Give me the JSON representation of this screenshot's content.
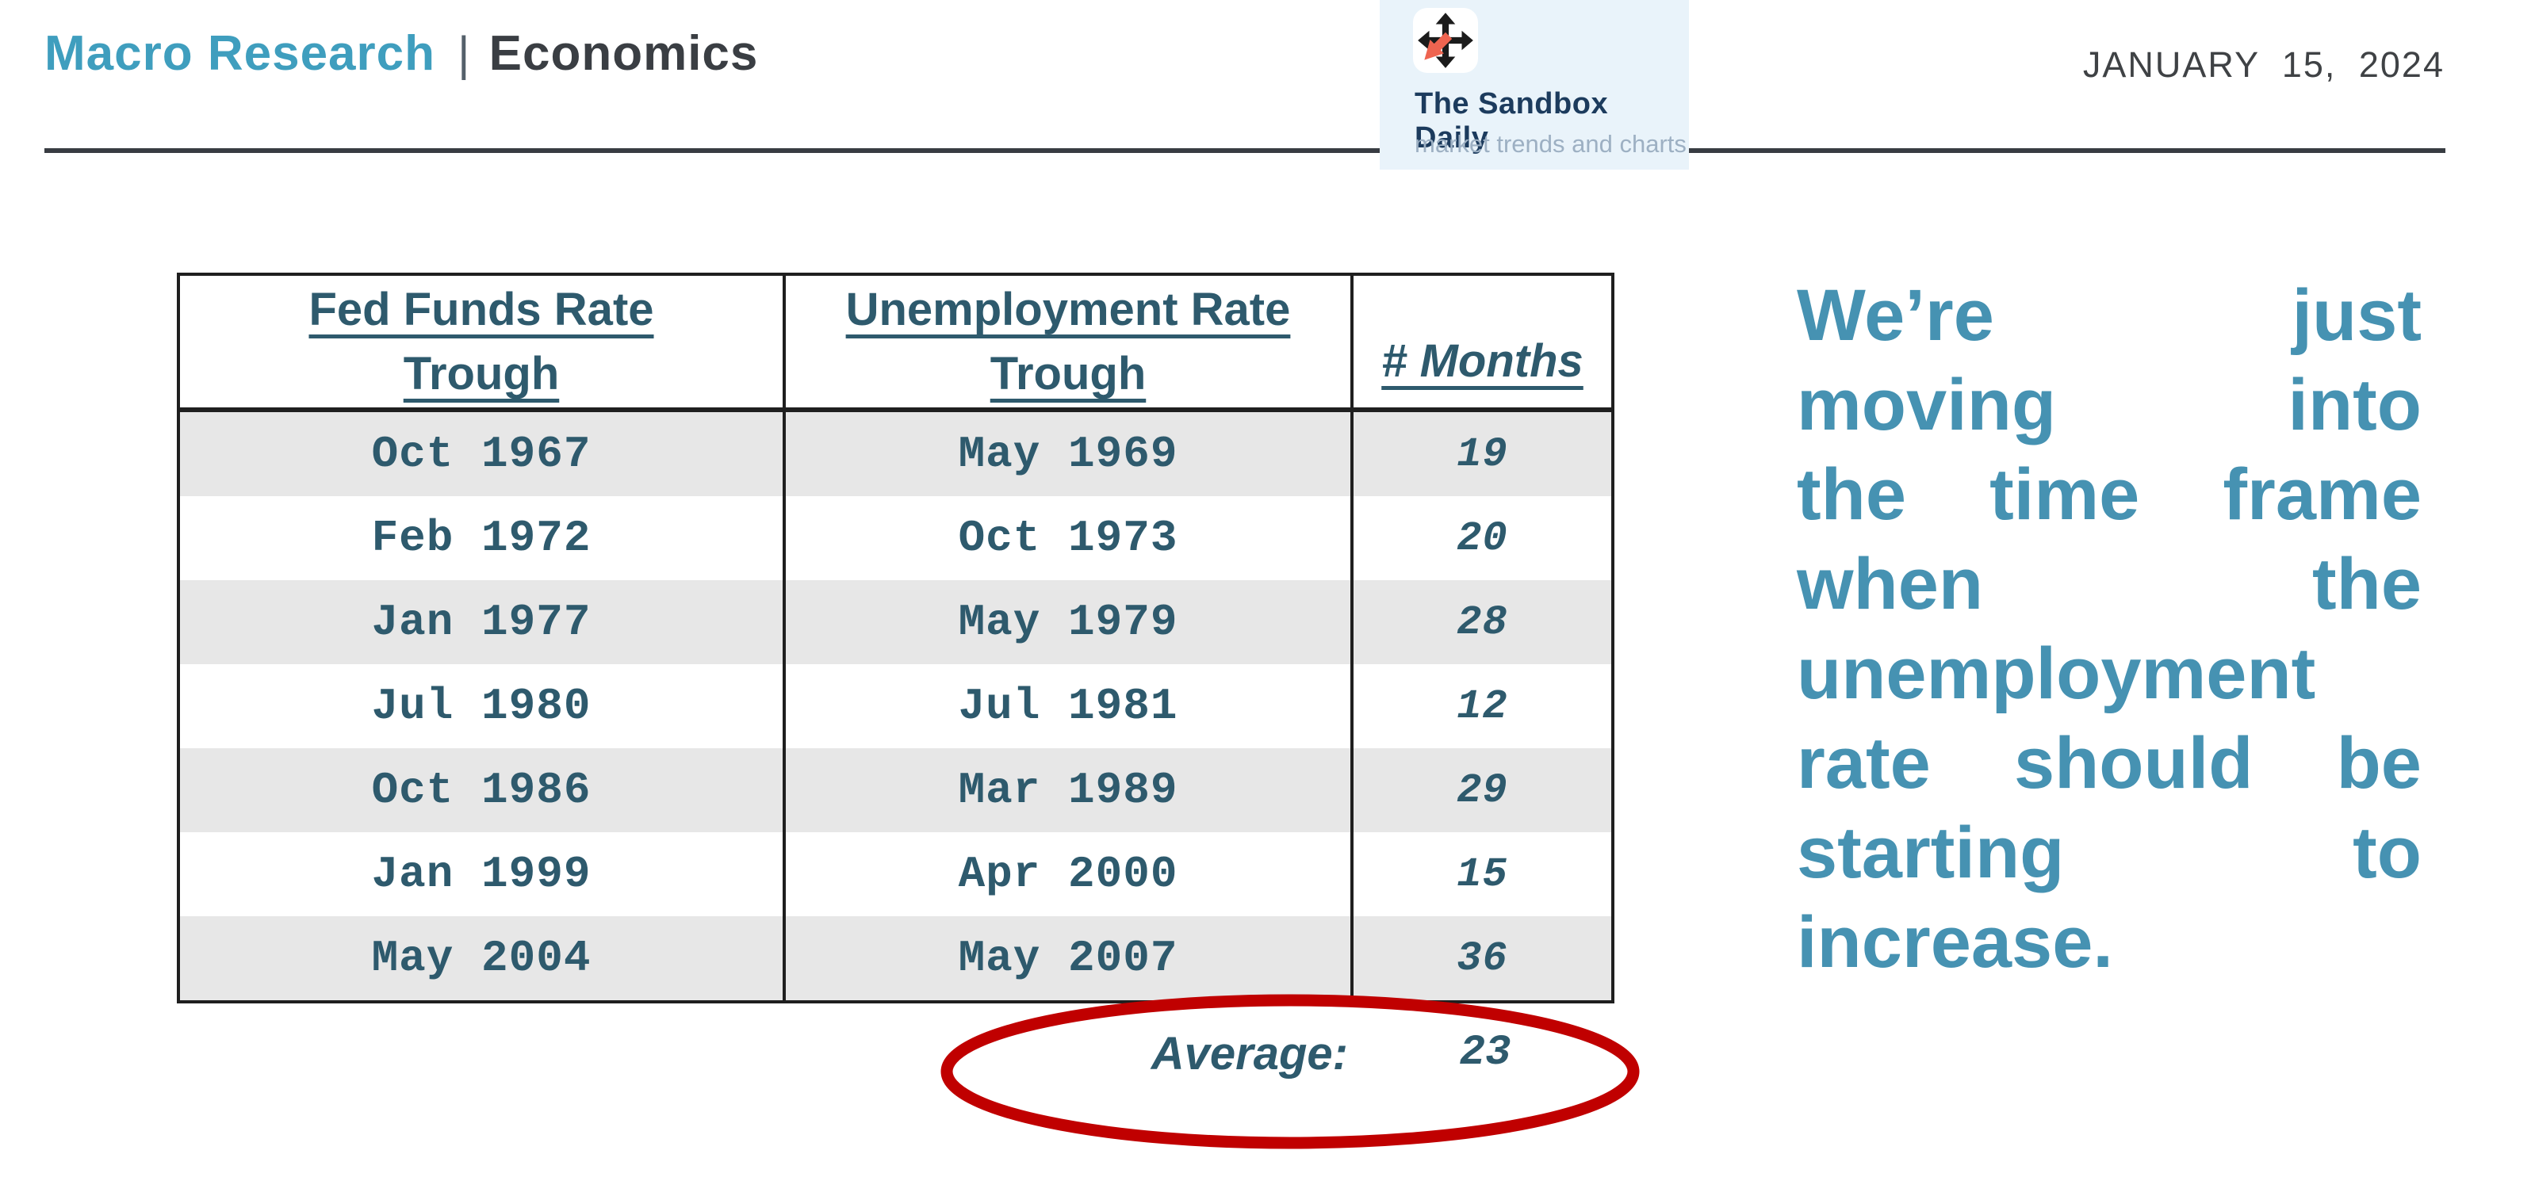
{
  "header": {
    "title_primary": "Macro Research",
    "separator": "|",
    "title_secondary": "Economics",
    "date": "JANUARY 15, 2024"
  },
  "logo": {
    "name": "The Sandbox Daily",
    "tagline": "market trends and charts",
    "icon": "move-arrows-icon"
  },
  "table": {
    "headers": [
      "Fed Funds Rate\nTrough",
      "Unemployment Rate\nTrough",
      "# Months"
    ],
    "rows": [
      [
        "Oct 1967",
        "May 1969",
        "19"
      ],
      [
        "Feb 1972",
        "Oct 1973",
        "20"
      ],
      [
        "Jan 1977",
        "May 1979",
        "28"
      ],
      [
        "Jul 1980",
        "Jul 1981",
        "12"
      ],
      [
        "Oct 1986",
        "Mar 1989",
        "29"
      ],
      [
        "Jan 1999",
        "Apr 2000",
        "15"
      ],
      [
        "May 2004",
        "May 2007",
        "36"
      ]
    ],
    "average_label": "Average:",
    "average_value": "23"
  },
  "annotation": {
    "full_text": "We’re just moving into the time frame when the unemployment rate should be starting to increase.",
    "lines": [
      "We’re just",
      "moving into",
      "the time frame",
      "when the",
      "unemployment",
      "rate should be",
      "starting to",
      "increase."
    ]
  },
  "chart_data": {
    "type": "table",
    "title": "Fed Funds Rate Trough vs Unemployment Rate Trough",
    "columns": [
      "Fed Funds Rate Trough",
      "Unemployment Rate Trough",
      "# Months"
    ],
    "rows": [
      [
        "Oct 1967",
        "May 1969",
        19
      ],
      [
        "Feb 1972",
        "Oct 1973",
        20
      ],
      [
        "Jan 1977",
        "May 1979",
        28
      ],
      [
        "Jul 1980",
        "Jul 1981",
        12
      ],
      [
        "Oct 1986",
        "Mar 1989",
        29
      ],
      [
        "Jan 1999",
        "Apr 2000",
        15
      ],
      [
        "May 2004",
        "May 2007",
        36
      ]
    ],
    "average_months": 23,
    "annotation": "We’re just moving into the time frame when the unemployment rate should be starting to increase."
  },
  "colors": {
    "accent_teal": "#3F9EBE",
    "annotation_teal": "#4692B2",
    "table_text": "#2E5A6D",
    "stripe_gray": "#E7E7E7",
    "highlight_red": "#C00000",
    "logo_navy": "#1C3B5D",
    "logo_bg": "#E9F3FA",
    "logo_tagline": "#9DB0C3",
    "icon_orange": "#EE6450"
  }
}
